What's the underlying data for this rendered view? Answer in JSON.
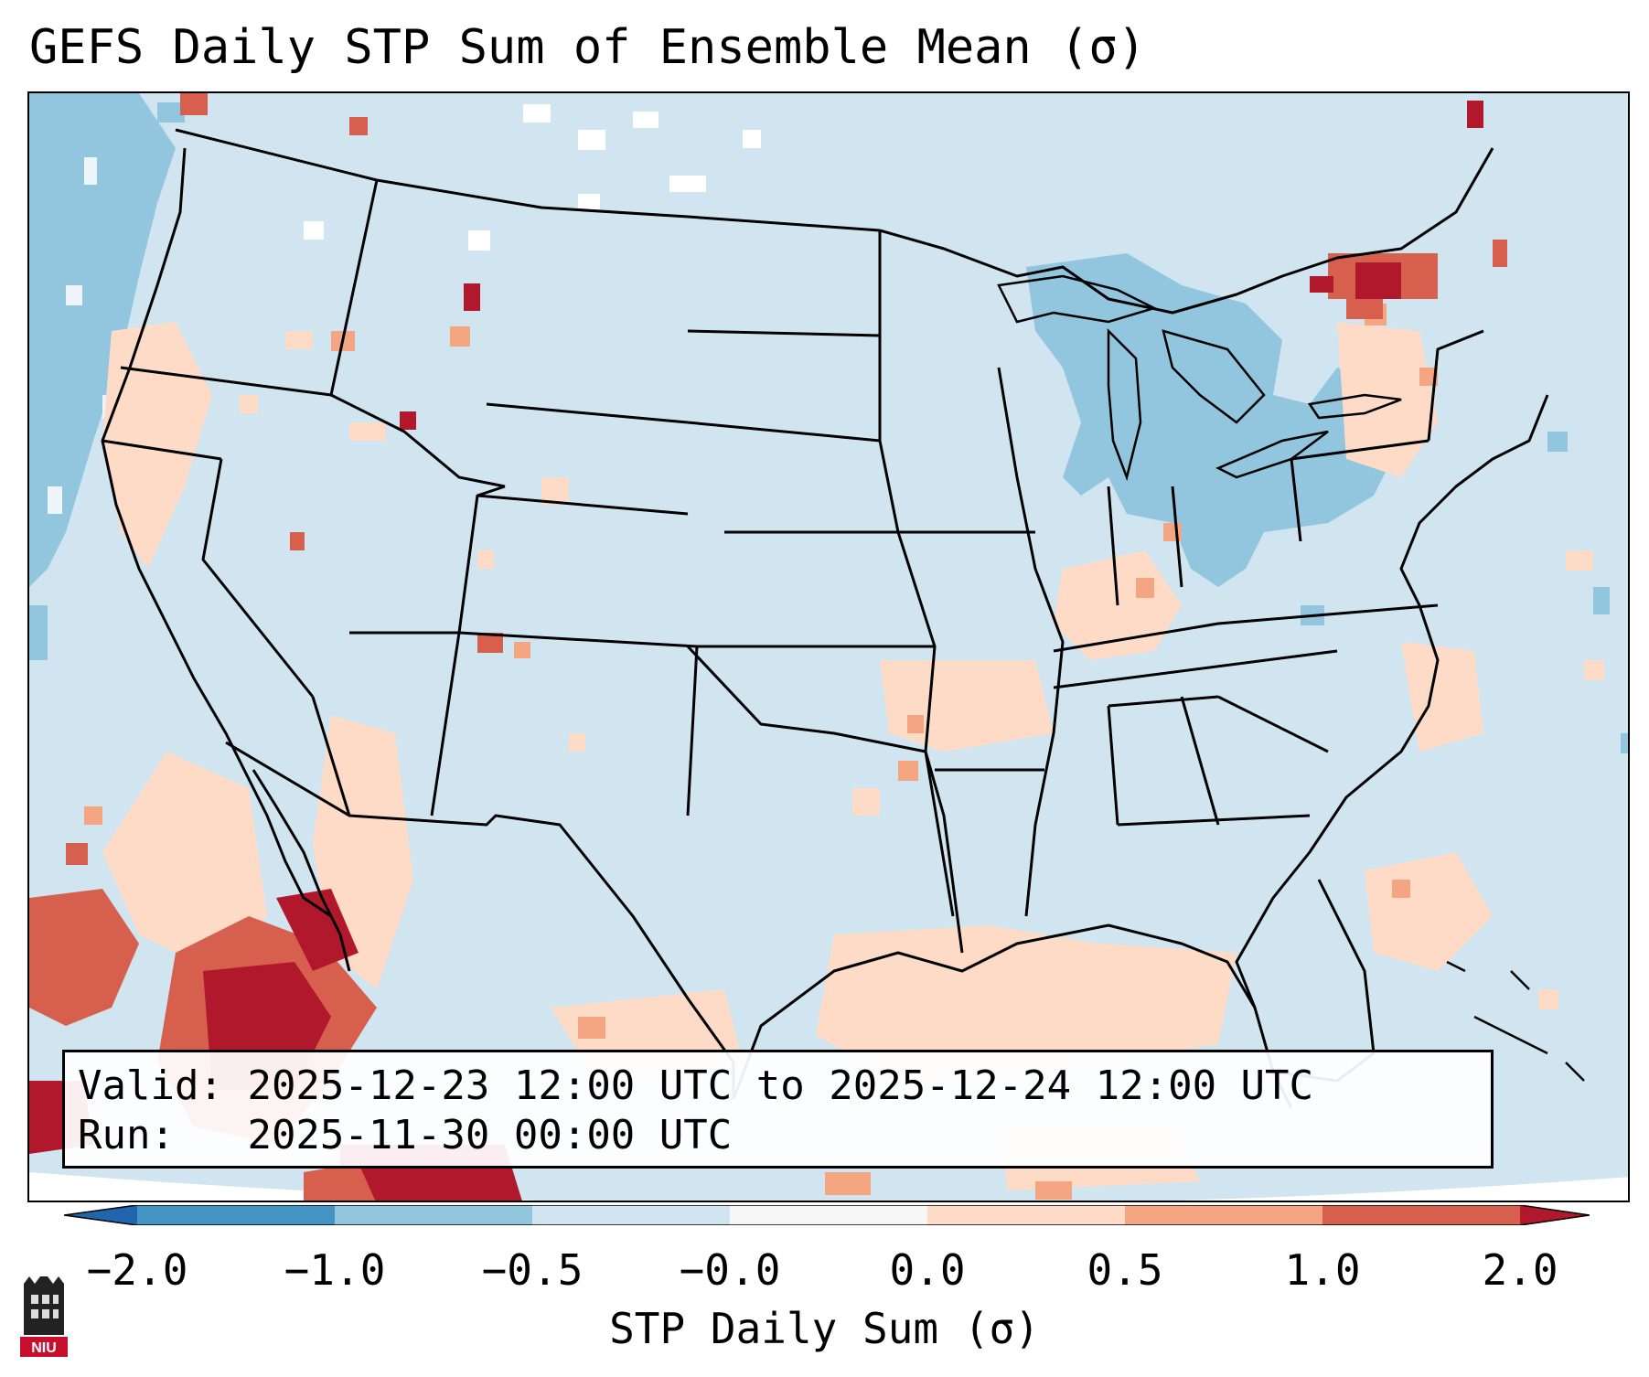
{
  "title": "GEFS Daily STP Sum of Ensemble Mean (σ)",
  "info": {
    "valid_label": "Valid:",
    "valid_text": "2025-12-23 12:00 UTC to 2025-12-24 12:00 UTC",
    "run_label": "Run:",
    "run_text": "2025-11-30 00:00 UTC"
  },
  "colorbar": {
    "label": "STP Daily Sum (σ)",
    "ticks": [
      "−2.0",
      "−1.0",
      "−0.5",
      "−0.0",
      "0.0",
      "0.5",
      "1.0",
      "2.0"
    ],
    "colors": [
      "#4393c3",
      "#92c5de",
      "#d1e5f0",
      "#f7f7f7",
      "#fddbc7",
      "#f4a582",
      "#d6604d",
      "#b2182b"
    ]
  },
  "logo": {
    "text": "NIU"
  },
  "map_colors": {
    "background": "#d1e5f0",
    "strong_negative": "#92c5de",
    "neutral": "#f7f7f7",
    "weak_positive": "#fddbc7",
    "moderate_positive": "#f4a582",
    "strong_positive": "#d6604d",
    "max_positive": "#b2182b"
  }
}
